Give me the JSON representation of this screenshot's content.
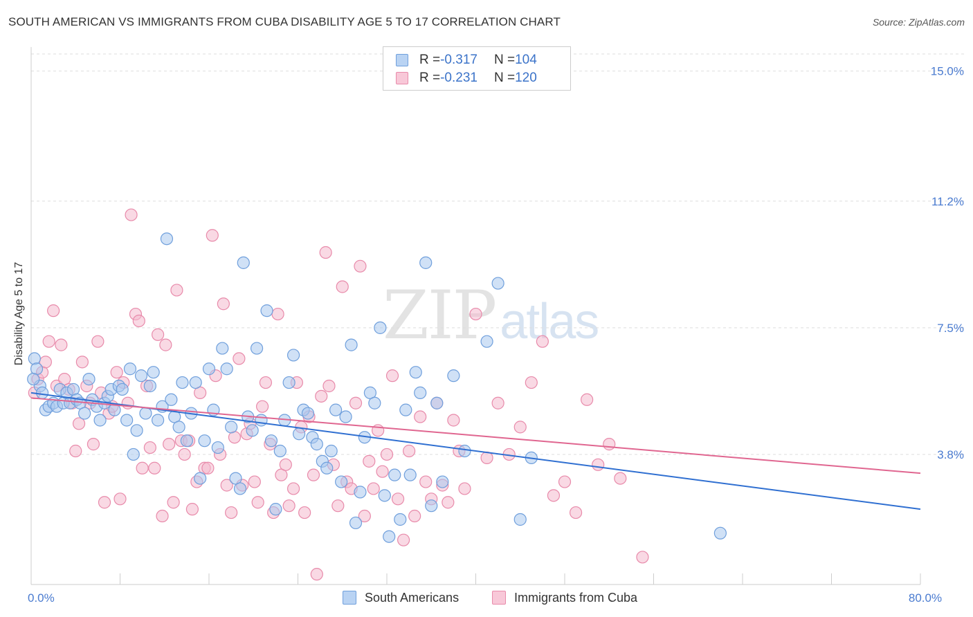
{
  "title": "SOUTH AMERICAN VS IMMIGRANTS FROM CUBA DISABILITY AGE 5 TO 17 CORRELATION CHART",
  "source": "Source: ZipAtlas.com",
  "watermark": {
    "zip": "ZIP",
    "atlas": "atlas"
  },
  "legend": {
    "series1": {
      "r_label": "R = ",
      "r_value": "-0.317",
      "n_label": "N = ",
      "n_value": "104"
    },
    "series2": {
      "r_label": "R = ",
      "r_value": "-0.231",
      "n_label": "N = ",
      "n_value": "120"
    }
  },
  "colors": {
    "blue_fill": "#a9c8ef",
    "blue_stroke": "#6f9fdc",
    "blue_line": "#2f6fd1",
    "pink_fill": "#f4b9cd",
    "pink_stroke": "#e88aaa",
    "pink_line": "#e06690",
    "grid": "#dddddd",
    "tick_text": "#4a7bd0"
  },
  "chart_data": {
    "type": "scatter",
    "title": "SOUTH AMERICAN VS IMMIGRANTS FROM CUBA DISABILITY AGE 5 TO 17 CORRELATION CHART",
    "xlabel": "",
    "ylabel": "Disability Age 5 to 17",
    "xlim": [
      0,
      80
    ],
    "ylim": [
      0,
      15.5
    ],
    "x_tick_labels": [
      {
        "value": 0,
        "label": "0.0%"
      },
      {
        "value": 80,
        "label": "80.0%"
      }
    ],
    "x_minor_ticks": [
      8,
      16,
      24,
      32,
      40,
      48,
      56,
      64,
      72,
      80
    ],
    "y_ticks": [
      {
        "value": 3.8,
        "label": "3.8%"
      },
      {
        "value": 7.5,
        "label": "7.5%"
      },
      {
        "value": 11.2,
        "label": "11.2%"
      },
      {
        "value": 15.0,
        "label": "15.0%"
      }
    ],
    "grid": true,
    "legend_position": "top-center",
    "series": [
      {
        "name": "South Americans",
        "color": "#a9c8ef",
        "trend": {
          "x": [
            0,
            80
          ],
          "y": [
            5.6,
            2.2
          ]
        },
        "points": [
          [
            0.3,
            6.6
          ],
          [
            0.5,
            6.3
          ],
          [
            0.8,
            5.8
          ],
          [
            1.0,
            5.6
          ],
          [
            1.3,
            5.1
          ],
          [
            1.6,
            5.2
          ],
          [
            2.0,
            5.3
          ],
          [
            2.3,
            5.2
          ],
          [
            2.6,
            5.7
          ],
          [
            2.9,
            5.3
          ],
          [
            3.2,
            5.6
          ],
          [
            3.5,
            5.3
          ],
          [
            3.8,
            5.7
          ],
          [
            4.1,
            5.4
          ],
          [
            4.4,
            5.3
          ],
          [
            4.8,
            5.0
          ],
          [
            5.2,
            6.0
          ],
          [
            5.5,
            5.4
          ],
          [
            5.9,
            5.2
          ],
          [
            6.2,
            4.8
          ],
          [
            6.6,
            5.3
          ],
          [
            6.9,
            5.5
          ],
          [
            7.2,
            5.7
          ],
          [
            7.5,
            5.1
          ],
          [
            7.9,
            5.8
          ],
          [
            8.2,
            5.7
          ],
          [
            8.6,
            4.8
          ],
          [
            8.9,
            6.3
          ],
          [
            9.2,
            3.8
          ],
          [
            9.5,
            4.5
          ],
          [
            9.9,
            6.1
          ],
          [
            10.3,
            5.0
          ],
          [
            10.7,
            5.8
          ],
          [
            11.0,
            6.2
          ],
          [
            11.4,
            4.8
          ],
          [
            11.8,
            5.2
          ],
          [
            12.2,
            10.1
          ],
          [
            12.6,
            5.4
          ],
          [
            12.9,
            4.9
          ],
          [
            13.3,
            4.6
          ],
          [
            13.6,
            5.9
          ],
          [
            14.0,
            4.2
          ],
          [
            14.4,
            5.0
          ],
          [
            14.8,
            5.9
          ],
          [
            15.2,
            3.1
          ],
          [
            15.6,
            4.2
          ],
          [
            16.0,
            6.3
          ],
          [
            16.4,
            5.1
          ],
          [
            16.8,
            4.0
          ],
          [
            17.2,
            6.9
          ],
          [
            17.6,
            6.3
          ],
          [
            18.0,
            4.6
          ],
          [
            18.4,
            3.1
          ],
          [
            18.8,
            2.8
          ],
          [
            19.1,
            9.4
          ],
          [
            19.5,
            4.9
          ],
          [
            19.9,
            4.5
          ],
          [
            20.3,
            6.9
          ],
          [
            20.7,
            4.8
          ],
          [
            21.2,
            8.0
          ],
          [
            21.6,
            4.2
          ],
          [
            22.0,
            2.2
          ],
          [
            22.4,
            3.9
          ],
          [
            22.8,
            4.8
          ],
          [
            23.2,
            5.9
          ],
          [
            23.6,
            6.7
          ],
          [
            24.1,
            4.4
          ],
          [
            24.5,
            5.1
          ],
          [
            24.9,
            5.0
          ],
          [
            25.3,
            4.3
          ],
          [
            25.7,
            4.1
          ],
          [
            26.2,
            3.6
          ],
          [
            26.6,
            3.4
          ],
          [
            27.0,
            3.9
          ],
          [
            27.4,
            5.1
          ],
          [
            27.9,
            3.0
          ],
          [
            28.3,
            4.9
          ],
          [
            28.8,
            7.0
          ],
          [
            29.2,
            1.8
          ],
          [
            29.6,
            2.7
          ],
          [
            30.0,
            4.3
          ],
          [
            30.5,
            5.6
          ],
          [
            30.9,
            5.3
          ],
          [
            31.4,
            7.5
          ],
          [
            31.8,
            2.6
          ],
          [
            32.2,
            1.4
          ],
          [
            32.7,
            3.2
          ],
          [
            33.2,
            1.9
          ],
          [
            33.7,
            5.1
          ],
          [
            34.1,
            3.2
          ],
          [
            34.6,
            6.2
          ],
          [
            35.0,
            5.6
          ],
          [
            35.5,
            9.4
          ],
          [
            36.0,
            2.3
          ],
          [
            36.5,
            5.3
          ],
          [
            37.0,
            3.0
          ],
          [
            38.0,
            6.1
          ],
          [
            39.0,
            3.9
          ],
          [
            41.0,
            7.1
          ],
          [
            42.0,
            8.8
          ],
          [
            44.0,
            1.9
          ],
          [
            45.0,
            3.7
          ],
          [
            62.0,
            1.5
          ],
          [
            0.2,
            6.0
          ]
        ]
      },
      {
        "name": "Immigrants from Cuba",
        "color": "#f4b9cd",
        "trend": {
          "x": [
            0,
            80
          ],
          "y": [
            5.45,
            3.25
          ]
        },
        "points": [
          [
            0.3,
            5.6
          ],
          [
            0.6,
            6.0
          ],
          [
            1.0,
            6.2
          ],
          [
            1.3,
            6.5
          ],
          [
            1.6,
            7.1
          ],
          [
            2.0,
            8.0
          ],
          [
            2.3,
            5.8
          ],
          [
            2.7,
            7.0
          ],
          [
            3.0,
            6.0
          ],
          [
            3.4,
            5.7
          ],
          [
            3.7,
            5.3
          ],
          [
            4.0,
            3.9
          ],
          [
            4.3,
            4.7
          ],
          [
            4.6,
            6.5
          ],
          [
            5.0,
            5.8
          ],
          [
            5.3,
            5.3
          ],
          [
            5.6,
            4.1
          ],
          [
            6.0,
            7.1
          ],
          [
            6.3,
            5.6
          ],
          [
            6.6,
            2.4
          ],
          [
            7.0,
            5.0
          ],
          [
            7.3,
            5.2
          ],
          [
            7.7,
            6.2
          ],
          [
            8.0,
            2.5
          ],
          [
            8.3,
            5.9
          ],
          [
            8.7,
            5.3
          ],
          [
            9.0,
            10.8
          ],
          [
            9.4,
            7.9
          ],
          [
            9.7,
            7.7
          ],
          [
            10.0,
            3.4
          ],
          [
            10.4,
            5.8
          ],
          [
            10.7,
            4.0
          ],
          [
            11.1,
            3.4
          ],
          [
            11.4,
            7.3
          ],
          [
            11.8,
            2.0
          ],
          [
            12.1,
            7.0
          ],
          [
            12.4,
            4.1
          ],
          [
            12.8,
            2.4
          ],
          [
            13.1,
            8.6
          ],
          [
            13.5,
            4.2
          ],
          [
            13.8,
            3.8
          ],
          [
            14.2,
            4.2
          ],
          [
            14.5,
            2.2
          ],
          [
            14.9,
            3.0
          ],
          [
            15.2,
            5.6
          ],
          [
            15.6,
            3.4
          ],
          [
            15.9,
            3.4
          ],
          [
            16.3,
            10.2
          ],
          [
            16.6,
            6.1
          ],
          [
            17.0,
            3.8
          ],
          [
            17.3,
            8.2
          ],
          [
            17.6,
            2.9
          ],
          [
            18.0,
            2.1
          ],
          [
            18.3,
            4.3
          ],
          [
            18.7,
            6.6
          ],
          [
            19.0,
            2.9
          ],
          [
            19.4,
            4.4
          ],
          [
            19.7,
            4.7
          ],
          [
            20.1,
            3.0
          ],
          [
            20.4,
            2.4
          ],
          [
            20.8,
            5.2
          ],
          [
            21.1,
            5.9
          ],
          [
            21.5,
            4.1
          ],
          [
            21.8,
            2.1
          ],
          [
            22.2,
            7.9
          ],
          [
            22.5,
            3.2
          ],
          [
            22.9,
            3.5
          ],
          [
            23.2,
            2.3
          ],
          [
            23.6,
            2.8
          ],
          [
            23.9,
            5.9
          ],
          [
            24.3,
            4.6
          ],
          [
            24.6,
            2.1
          ],
          [
            25.0,
            4.9
          ],
          [
            25.4,
            3.2
          ],
          [
            25.7,
            0.3
          ],
          [
            26.1,
            5.5
          ],
          [
            26.5,
            9.7
          ],
          [
            26.8,
            5.8
          ],
          [
            27.2,
            3.5
          ],
          [
            27.6,
            2.3
          ],
          [
            28.0,
            8.7
          ],
          [
            28.4,
            3.0
          ],
          [
            28.8,
            2.8
          ],
          [
            29.2,
            5.3
          ],
          [
            29.6,
            9.3
          ],
          [
            30.0,
            2.0
          ],
          [
            30.4,
            3.6
          ],
          [
            30.8,
            2.8
          ],
          [
            31.2,
            4.5
          ],
          [
            31.6,
            3.3
          ],
          [
            32.0,
            3.8
          ],
          [
            32.5,
            6.1
          ],
          [
            33.0,
            2.5
          ],
          [
            33.5,
            1.3
          ],
          [
            34.0,
            3.9
          ],
          [
            34.5,
            2.0
          ],
          [
            35.0,
            4.9
          ],
          [
            35.5,
            3.0
          ],
          [
            36.0,
            2.5
          ],
          [
            36.5,
            5.3
          ],
          [
            37.0,
            2.9
          ],
          [
            37.5,
            2.4
          ],
          [
            38.0,
            4.8
          ],
          [
            38.5,
            3.9
          ],
          [
            39.0,
            2.8
          ],
          [
            40.0,
            7.9
          ],
          [
            41.0,
            3.7
          ],
          [
            42.0,
            5.3
          ],
          [
            43.0,
            3.8
          ],
          [
            44.0,
            4.6
          ],
          [
            45.0,
            5.9
          ],
          [
            46.0,
            7.1
          ],
          [
            47.0,
            2.6
          ],
          [
            48.0,
            3.0
          ],
          [
            49.0,
            2.1
          ],
          [
            50.0,
            5.4
          ],
          [
            51.0,
            3.5
          ],
          [
            52.0,
            4.1
          ],
          [
            53.0,
            3.1
          ],
          [
            55.0,
            0.8
          ]
        ]
      }
    ]
  }
}
